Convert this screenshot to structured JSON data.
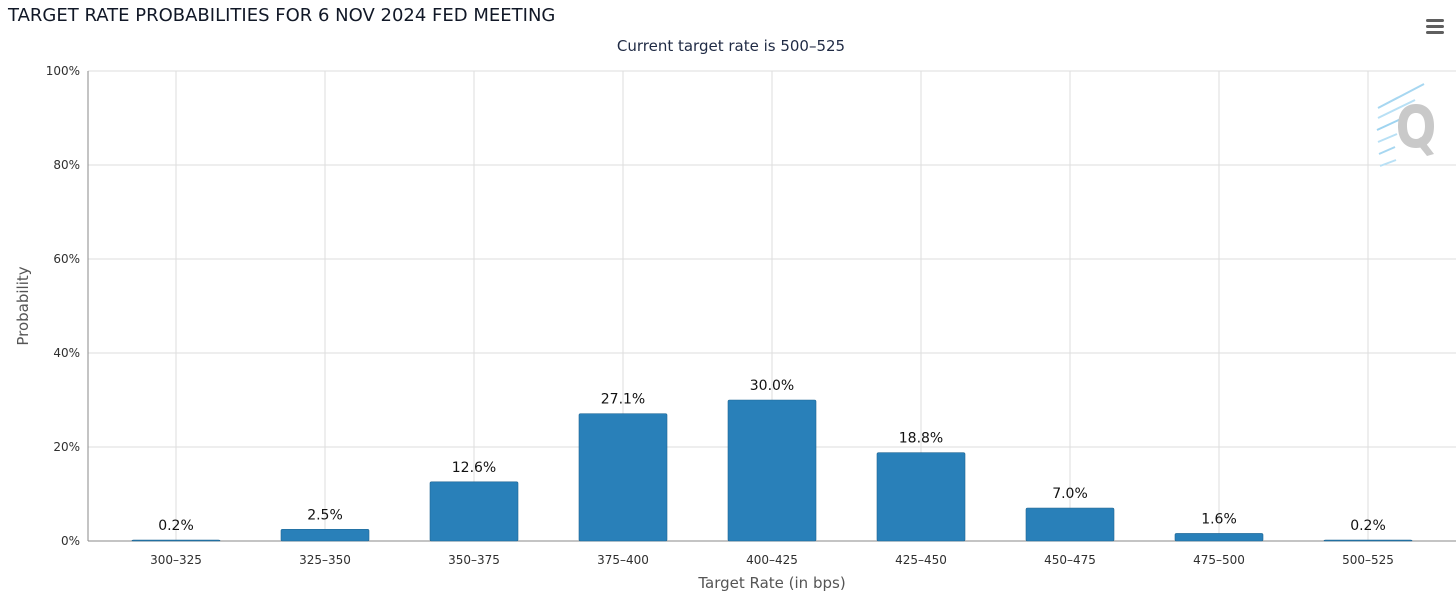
{
  "header": {
    "title": "TARGET RATE PROBABILITIES FOR 6 NOV 2024 FED MEETING",
    "subtitle": "Current target rate is 500–525"
  },
  "toolbar": {
    "menu_icon": "hamburger-menu-icon"
  },
  "branding": {
    "logo_icon": "q-logo-icon"
  },
  "chart_data": {
    "type": "bar",
    "title": "TARGET RATE PROBABILITIES FOR 6 NOV 2024 FED MEETING",
    "subtitle": "Current target rate is 500–525",
    "xlabel": "Target Rate (in bps)",
    "ylabel": "Probability",
    "categories": [
      "300–325",
      "325–350",
      "350–375",
      "375–400",
      "400–425",
      "425–450",
      "450–475",
      "475–500",
      "500–525"
    ],
    "values": [
      0.2,
      2.5,
      12.6,
      27.1,
      30.0,
      18.8,
      7.0,
      1.6,
      0.2
    ],
    "data_labels": [
      "0.2%",
      "2.5%",
      "12.6%",
      "27.1%",
      "30.0%",
      "18.8%",
      "7.0%",
      "1.6%",
      "0.2%"
    ],
    "ylim": [
      0,
      100
    ],
    "yticks": [
      0,
      20,
      40,
      60,
      80,
      100
    ],
    "ytick_labels": [
      "0%",
      "20%",
      "40%",
      "60%",
      "80%",
      "100%"
    ],
    "grid": true,
    "legend": "none",
    "colors": {
      "bar": "#2980b9",
      "grid": "#dddddd",
      "axis": "#8a8a8a"
    }
  }
}
